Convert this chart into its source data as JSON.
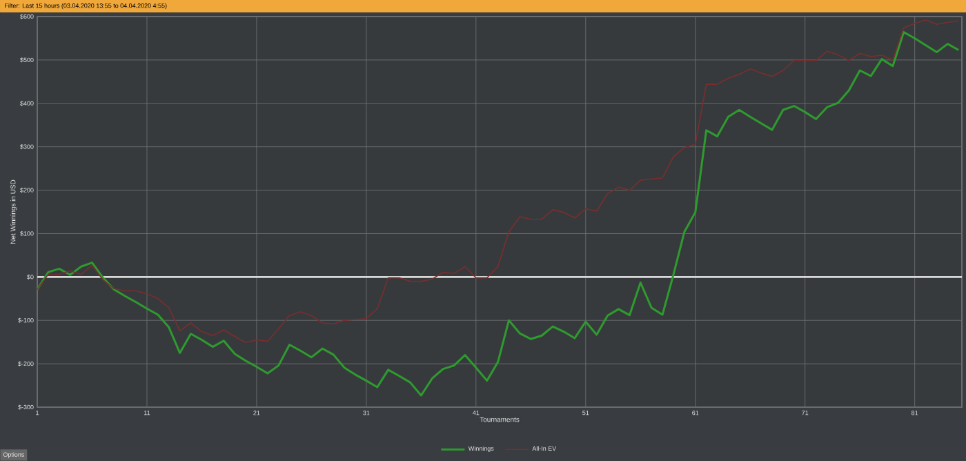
{
  "chart_data": {
    "type": "line",
    "title": "Filter: Last 15 hours (03.04.2020 13:55 to 04.04.2020 4:55)",
    "xlabel": "Tournaments",
    "ylabel": "Net Winnings in USD",
    "x": [
      1,
      2,
      3,
      4,
      5,
      6,
      7,
      8,
      9,
      10,
      11,
      12,
      13,
      14,
      15,
      16,
      17,
      18,
      19,
      20,
      21,
      22,
      23,
      24,
      25,
      26,
      27,
      28,
      29,
      30,
      31,
      32,
      33,
      34,
      35,
      36,
      37,
      38,
      39,
      40,
      41,
      42,
      43,
      44,
      45,
      46,
      47,
      48,
      49,
      50,
      51,
      52,
      53,
      54,
      55,
      56,
      57,
      58,
      59,
      60,
      61,
      62,
      63,
      64,
      65,
      66,
      67,
      68,
      69,
      70,
      71,
      72,
      73,
      74,
      75,
      76,
      77,
      78,
      79,
      80,
      81,
      82,
      83,
      84,
      85
    ],
    "series": [
      {
        "name": "Winnings",
        "color": "#2e9b2e",
        "values": [
          -29,
          11,
          19,
          5,
          24,
          33,
          -2,
          -29,
          -44,
          -58,
          -73,
          -87,
          -116,
          -175,
          -131,
          -145,
          -161,
          -147,
          -177,
          -193,
          -207,
          -222,
          -204,
          -156,
          -170,
          -185,
          -165,
          -179,
          -209,
          -225,
          -239,
          -254,
          -214,
          -228,
          -243,
          -273,
          -234,
          -212,
          -204,
          -180,
          -209,
          -239,
          -196,
          -100,
          -130,
          -143,
          -135,
          -114,
          -126,
          -141,
          -103,
          -133,
          -89,
          -74,
          -88,
          -13,
          -71,
          -87,
          5,
          104,
          149,
          338,
          324,
          369,
          385,
          369,
          354,
          339,
          385,
          394,
          380,
          364,
          391,
          401,
          430,
          476,
          463,
          502,
          486,
          564,
          550,
          534,
          518,
          537,
          523
        ]
      },
      {
        "name": "All-In EV",
        "color": "#7a2e2e",
        "values": [
          -29,
          6,
          6,
          14,
          6,
          27,
          -7,
          -27,
          -32,
          -32,
          -39,
          -50,
          -71,
          -124,
          -106,
          -126,
          -135,
          -122,
          -137,
          -151,
          -145,
          -148,
          -119,
          -89,
          -80,
          -89,
          -106,
          -108,
          -100,
          -98,
          -96,
          -73,
          -2,
          -2,
          -10,
          -10,
          -5,
          11,
          8,
          24,
          -2,
          -2,
          24,
          104,
          139,
          133,
          133,
          155,
          149,
          136,
          157,
          152,
          192,
          207,
          200,
          223,
          226,
          228,
          277,
          298,
          306,
          444,
          444,
          458,
          467,
          479,
          470,
          462,
          476,
          499,
          499,
          499,
          520,
          512,
          499,
          515,
          508,
          511,
          500,
          574,
          584,
          592,
          582,
          587,
          590
        ]
      }
    ],
    "xlim": [
      1,
      85.3
    ],
    "ylim": [
      -300,
      600
    ],
    "xticks": [
      1,
      11,
      21,
      31,
      41,
      51,
      61,
      71,
      81
    ],
    "yticks": [
      {
        "value": -300,
        "label": "$-300"
      },
      {
        "value": -200,
        "label": "$-200"
      },
      {
        "value": -100,
        "label": "$-100"
      },
      {
        "value": 0,
        "label": "$0"
      },
      {
        "value": 100,
        "label": "$100"
      },
      {
        "value": 200,
        "label": "$200"
      },
      {
        "value": 300,
        "label": "$300"
      },
      {
        "value": 400,
        "label": "$400"
      },
      {
        "value": 500,
        "label": "$500"
      },
      {
        "value": 600,
        "label": "$600"
      }
    ],
    "ref_lines": [
      {
        "axis": "y",
        "value": 0,
        "color": "#d8d8d8"
      }
    ],
    "grid": true,
    "legend": "bottom",
    "line_style": "solid",
    "annotations": [
      "Options"
    ]
  }
}
